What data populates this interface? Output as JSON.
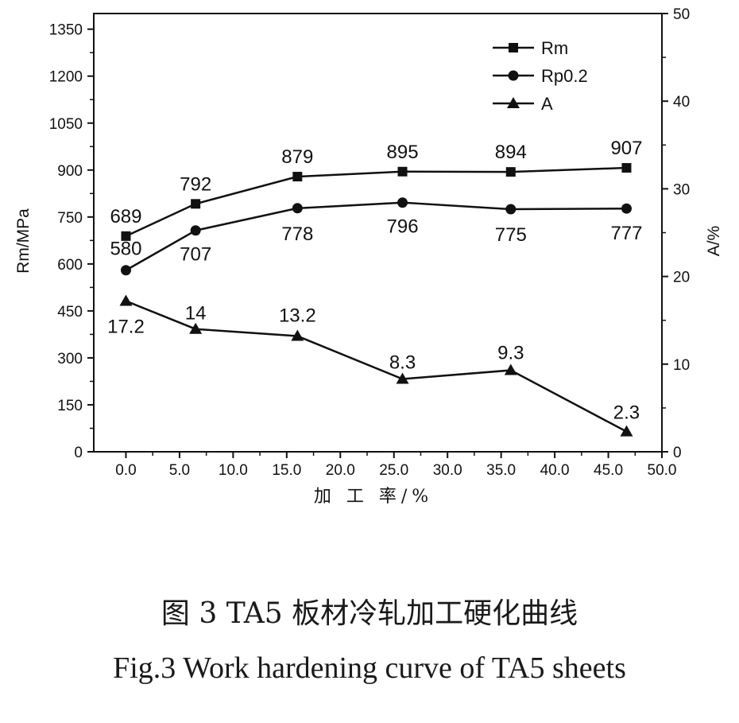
{
  "chart_data": {
    "type": "line",
    "x": [
      0.0,
      6.5,
      16.0,
      25.8,
      35.9,
      46.7
    ],
    "series": [
      {
        "name": "Rm",
        "axis": "left",
        "marker": "square",
        "values": [
          689,
          792,
          879,
          895,
          894,
          907
        ],
        "labels": [
          "689",
          "792",
          "879",
          "895",
          "894",
          "907"
        ],
        "label_position": "above"
      },
      {
        "name": "Rp0.2",
        "axis": "left",
        "marker": "circle",
        "values": [
          580,
          707,
          778,
          796,
          775,
          777
        ],
        "labels": [
          "580",
          "707",
          "778",
          "796",
          "775",
          "777"
        ],
        "label_position": "mixed"
      },
      {
        "name": "A",
        "axis": "right",
        "marker": "triangle",
        "values": [
          17.2,
          14,
          13.2,
          8.3,
          9.3,
          2.3
        ],
        "labels": [
          "17.2",
          "14",
          "13.2",
          "8.3",
          "9.3",
          "2.3"
        ],
        "label_position": "mixed"
      }
    ],
    "xlabel": "加 工 率/%",
    "ylabel_left": "Rm/MPa",
    "ylabel_right": "A/%",
    "xlim": [
      -3,
      50
    ],
    "ylim_left": [
      0,
      1400
    ],
    "ylim_right": [
      0,
      50
    ],
    "xticks": [
      "0.0",
      "5.0",
      "10.0",
      "15.0",
      "20.0",
      "25.0",
      "30.0",
      "35.0",
      "40.0",
      "45.0",
      "50.0"
    ],
    "yticks_left": [
      "0",
      "150",
      "300",
      "450",
      "600",
      "750",
      "900",
      "1050",
      "1200",
      "1350"
    ],
    "yticks_right": [
      "0",
      "10",
      "20",
      "30",
      "40",
      "50"
    ],
    "legend_position": "top-right",
    "grid": false,
    "color": "#111111"
  },
  "caption": {
    "chinese": "图 3 TA5 板材冷轧加工硬化曲线",
    "english": "Fig.3 Work hardening curve of TA5 sheets"
  }
}
